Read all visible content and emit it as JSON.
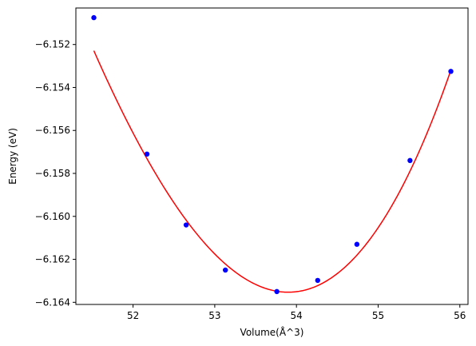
{
  "chart_data": {
    "type": "scatter",
    "title": "",
    "xlabel": "Volume(Å^3)",
    "ylabel": "Energy (eV)",
    "xlim": [
      51.3,
      56.1
    ],
    "ylim": [
      -6.1641,
      -6.1503
    ],
    "xticks": [
      {
        "value": 52,
        "label": "52"
      },
      {
        "value": 53,
        "label": "53"
      },
      {
        "value": 54,
        "label": "54"
      },
      {
        "value": 55,
        "label": "55"
      },
      {
        "value": 56,
        "label": "56"
      }
    ],
    "yticks": [
      {
        "value": -6.152,
        "label": "−6.152"
      },
      {
        "value": -6.154,
        "label": "−6.154"
      },
      {
        "value": -6.156,
        "label": "−6.156"
      },
      {
        "value": -6.158,
        "label": "−6.158"
      },
      {
        "value": -6.16,
        "label": "−6.160"
      },
      {
        "value": -6.162,
        "label": "−6.162"
      },
      {
        "value": -6.164,
        "label": "−6.164"
      }
    ],
    "grid": false,
    "series": [
      {
        "kind": "scatter",
        "color": "#0000ff",
        "points": [
          {
            "x": 51.52,
            "y": -6.15075
          },
          {
            "x": 52.17,
            "y": -6.1571
          },
          {
            "x": 52.65,
            "y": -6.1604
          },
          {
            "x": 53.13,
            "y": -6.1625
          },
          {
            "x": 53.76,
            "y": -6.1635
          },
          {
            "x": 54.26,
            "y": -6.16298
          },
          {
            "x": 54.74,
            "y": -6.1613
          },
          {
            "x": 55.39,
            "y": -6.1574
          },
          {
            "x": 55.89,
            "y": -6.15325
          }
        ]
      },
      {
        "kind": "line",
        "color": "#ff0000",
        "x_range": [
          51.52,
          55.89
        ],
        "fit_center_x": 53.9,
        "fit_min_y": -6.16353,
        "fit_curvature": 0.002325,
        "fit_cubic": 0.000143
      }
    ]
  }
}
